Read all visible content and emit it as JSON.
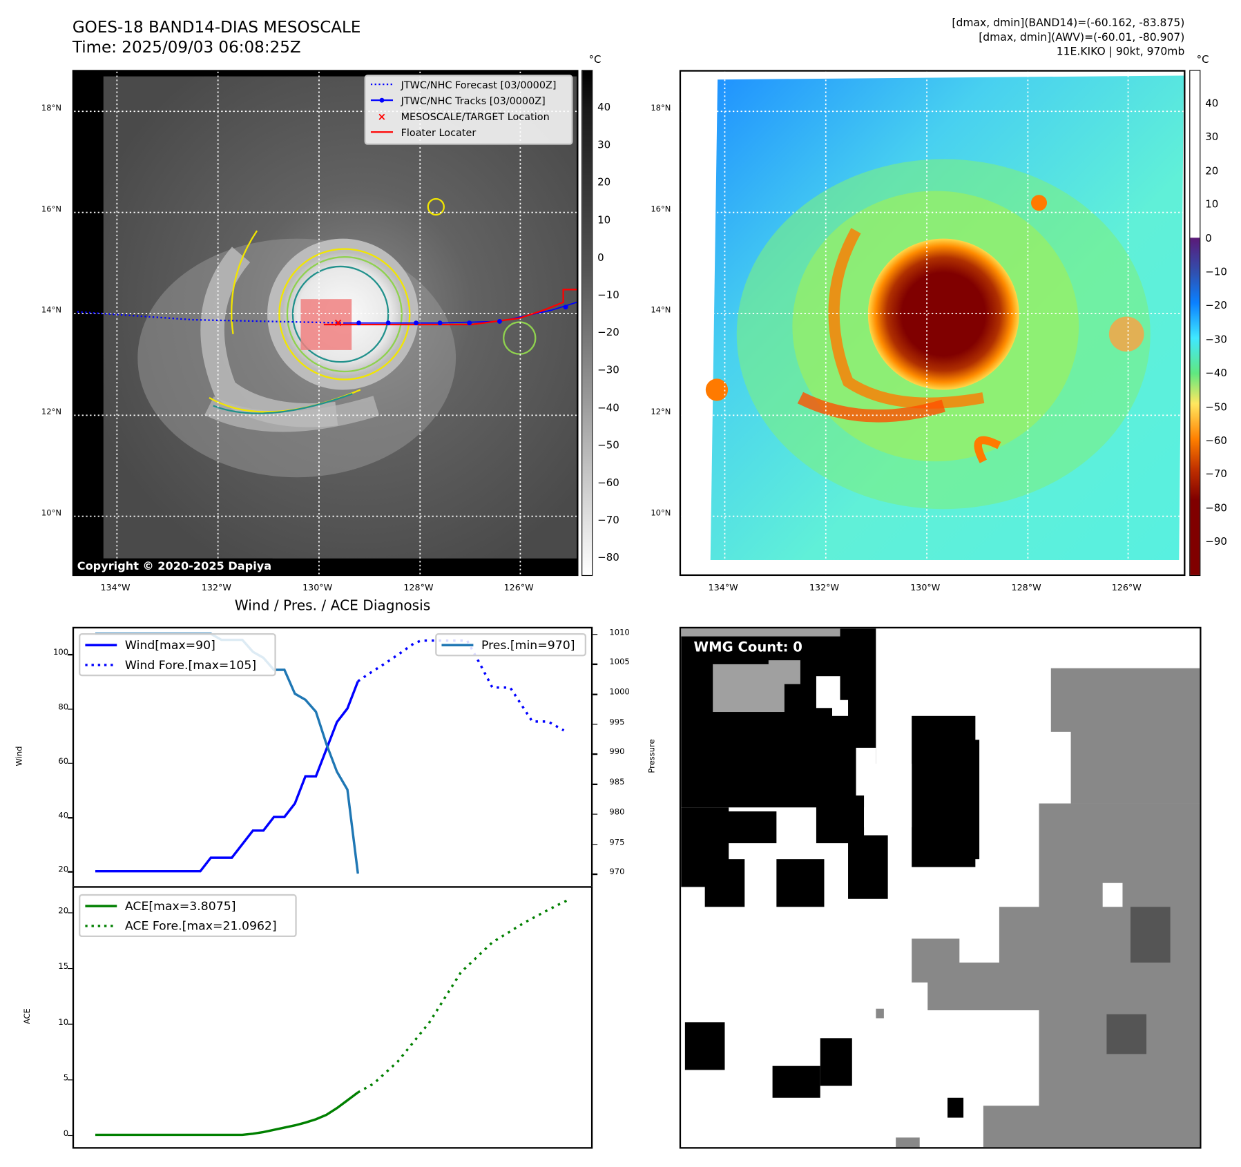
{
  "header": {
    "title_line1": "GOES-18 BAND14-DIAS MESOSCALE",
    "title_line2": "Time: 2025/09/03 06:08:25Z",
    "stats_line1": "[dmax, dmin](BAND14)=(-60.162, -83.875)",
    "stats_line2": "[dmax, dmin](AWV)=(-60.01, -80.907)",
    "stats_line3": "11E.KIKO | 90kt, 970mb"
  },
  "maps": {
    "lat_labels": [
      "18°N",
      "16°N",
      "14°N",
      "12°N",
      "10°N"
    ],
    "lon_labels": [
      "134°W",
      "132°W",
      "130°W",
      "128°W",
      "126°W"
    ],
    "unit": "°C",
    "copyright": "Copyright © 2020-2025 Dapiya",
    "colorbar_gray_ticks": [
      "40",
      "30",
      "20",
      "10",
      "0",
      "−10",
      "−20",
      "−30",
      "−40",
      "−50",
      "−60",
      "−70",
      "−80"
    ],
    "colorbar_color_ticks": [
      "40",
      "30",
      "20",
      "10",
      "0",
      "−10",
      "−20",
      "−30",
      "−40",
      "−50",
      "−60",
      "−70",
      "−80",
      "−90"
    ],
    "legend": {
      "forecast": "JTWC/NHC Forecast [03/0000Z]",
      "tracks": "JTWC/NHC Tracks [03/0000Z]",
      "target": "MESOSCALE/TARGET Location",
      "floater": "Floater Locater"
    },
    "colors": {
      "forecast": "#0000ff",
      "tracks": "#0000ff",
      "target": "#ff0000",
      "floater": "#ff0000"
    }
  },
  "wmg": {
    "label": "WMG Count: 0"
  },
  "chart_data": [
    {
      "type": "line",
      "title": "Wind / Pres. / ACE Diagnosis",
      "ylabel": "Wind",
      "ylabel2": "Pressure",
      "xlim": [
        -2.03,
        47.2
      ],
      "ylim": [
        14.5,
        109.5
      ],
      "ylim2": [
        967.9,
        1010.9
      ],
      "yticks": [
        "100",
        "80",
        "60",
        "40",
        "20"
      ],
      "yticks2": [
        "1010",
        "1005",
        "1000",
        "995",
        "990",
        "985",
        "980",
        "975",
        "970"
      ],
      "series": [
        {
          "name": "Wind[max=90]",
          "color": "#0000ff",
          "style": "solid",
          "axis": "left",
          "x": [
            0,
            10,
            11,
            13,
            15,
            16,
            17,
            18,
            19,
            20,
            21,
            23,
            24,
            25
          ],
          "y": [
            20,
            20,
            25,
            25,
            35,
            35,
            40,
            40,
            45,
            55,
            55,
            75,
            80,
            90
          ]
        },
        {
          "name": "Wind Fore.[max=105]",
          "color": "#0000ff",
          "style": "dotted",
          "axis": "left",
          "x": [
            25,
            26,
            27.5,
            28.8,
            30.3,
            31,
            35.4,
            36.5,
            37.8,
            39.5,
            41.6,
            43.1,
            44.6
          ],
          "y": [
            90,
            92.7,
            96.4,
            99.8,
            103.9,
            105,
            105,
            97.3,
            87.7,
            87.7,
            75.2,
            75.2,
            71.9
          ]
        },
        {
          "name": "Pres.[min=970]",
          "color": "#1f77b4",
          "style": "solid",
          "axis": "right",
          "x": [
            0,
            11,
            12,
            14,
            15,
            16,
            17,
            18,
            19,
            20,
            21,
            22,
            23,
            24,
            25
          ],
          "y": [
            1010,
            1010,
            1009,
            1009,
            1007,
            1006,
            1004,
            1004,
            1000,
            999,
            997,
            991.6,
            987,
            984,
            970
          ]
        }
      ]
    },
    {
      "type": "line",
      "ylabel": "ACE",
      "xlim": [
        -2.03,
        47.2
      ],
      "ylim": [
        -1.1,
        22.2
      ],
      "yticks": [
        "20",
        "15",
        "10",
        "5",
        "0"
      ],
      "series": [
        {
          "name": "ACE[max=3.8075]",
          "color": "#008000",
          "style": "solid",
          "x": [
            0,
            14,
            15,
            16,
            17,
            18,
            19,
            20,
            21,
            22,
            23,
            24,
            25
          ],
          "y": [
            0,
            0,
            0.1,
            0.25,
            0.45,
            0.65,
            0.85,
            1.1,
            1.4,
            1.8,
            2.4,
            3.1,
            3.8075
          ]
        },
        {
          "name": "ACE Fore.[max=21.0962]",
          "color": "#008000",
          "style": "dotted",
          "x": [
            25,
            26.5,
            28.8,
            31.8,
            34.8,
            37.8,
            40.9,
            43.9,
            45
          ],
          "y": [
            3.8075,
            4.6,
            6.6,
            10.1,
            14.6,
            17.3,
            19.1,
            20.6,
            21.0962
          ]
        }
      ]
    }
  ]
}
